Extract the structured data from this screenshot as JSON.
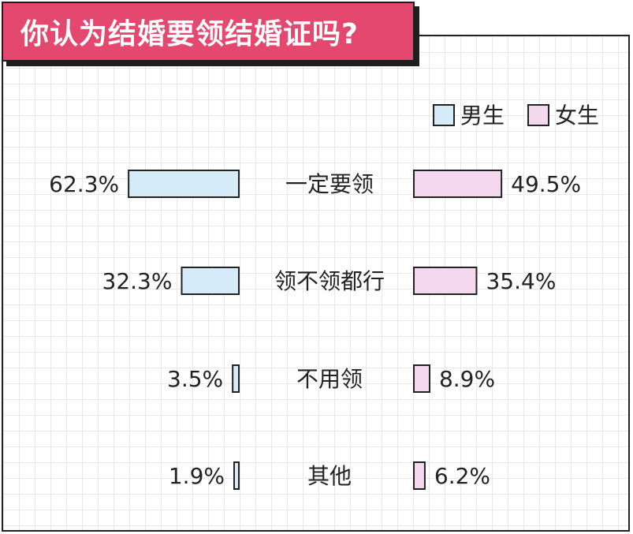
{
  "title": "你认为结婚要领结婚证吗?",
  "colors": {
    "accent": "#e5486e",
    "male": "#d6ebf8",
    "female": "#f4d8ef",
    "stroke": "#222222"
  },
  "chart_data": {
    "type": "bar",
    "orientation": "horizontal-butterfly",
    "title": "你认为结婚要领结婚证吗?",
    "categories": [
      "一定要领",
      "领不领都行",
      "不用领",
      "其他"
    ],
    "series": [
      {
        "name": "男生",
        "values": [
          62.3,
          32.3,
          3.5,
          1.9
        ],
        "labels": [
          "62.3%",
          "32.3%",
          "3.5%",
          "1.9%"
        ]
      },
      {
        "name": "女生",
        "values": [
          49.5,
          35.4,
          8.9,
          6.2
        ],
        "labels": [
          "49.5%",
          "35.4%",
          "8.9%",
          "6.2%"
        ]
      }
    ],
    "unit": "%",
    "legend": "top-right",
    "grid": true
  }
}
